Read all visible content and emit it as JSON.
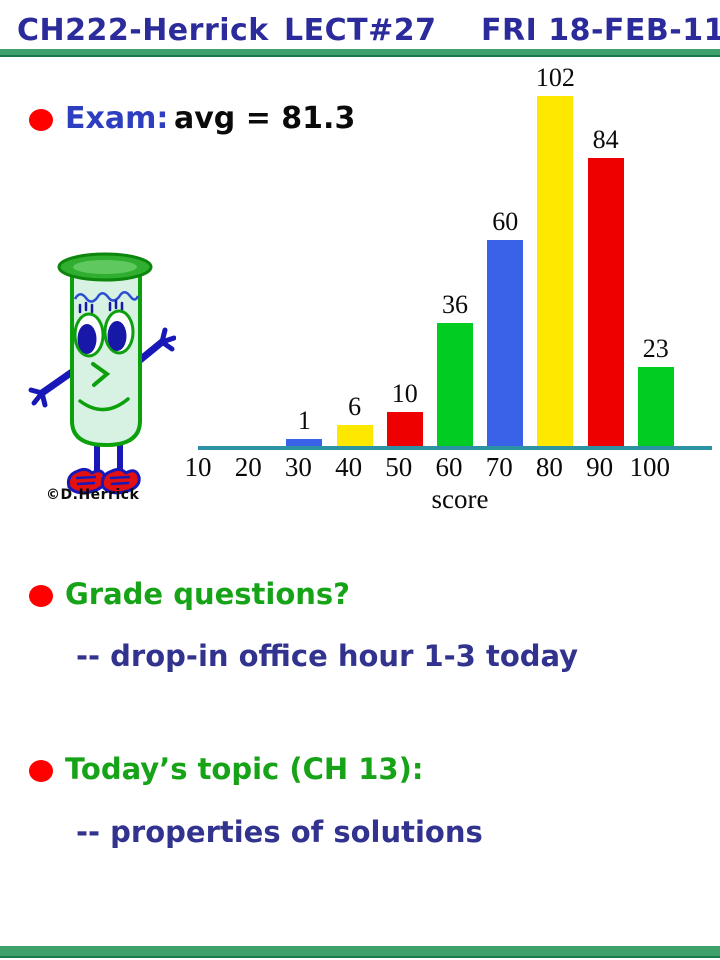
{
  "header": {
    "course": "CH222-Herrick",
    "lecture": "LECT#27",
    "date": "FRI 18-FEB-11"
  },
  "exam": {
    "label": "Exam:",
    "avg_text": "avg = 81.3"
  },
  "chart_data": {
    "type": "bar",
    "categories": [
      10,
      20,
      30,
      40,
      50,
      60,
      70,
      80,
      90,
      100
    ],
    "values": [
      0,
      0,
      1,
      6,
      10,
      36,
      60,
      102,
      84,
      23
    ],
    "bar_colors": [
      null,
      null,
      "#3A62E8",
      "#FFE800",
      "#EE0000",
      "#00CC22",
      "#3A62E8",
      "#FFE800",
      "#EE0000",
      "#00CC22"
    ],
    "xlabel": "score",
    "ylabel": "",
    "title": "",
    "ylim": [
      0,
      110
    ],
    "grid": false,
    "legend": false,
    "axis_color": "#2B93A3",
    "value_labels_shown": true
  },
  "mascot": {
    "credit": "©D.Herrick"
  },
  "bullets": [
    {
      "label": "Grade questions?",
      "sub": "-- drop-in office hour 1-3 today"
    },
    {
      "label": "Today’s topic (CH 13):",
      "sub": "-- properties of solutions"
    }
  ],
  "palette": {
    "header_blue": "#2B2B9B",
    "rule_green": "#3EA06A",
    "bullet_red": "#FF0000",
    "exam_blue": "#2E3EC0",
    "green_text": "#17A317",
    "navy_text": "#32328F",
    "axis_teal": "#2B93A3"
  }
}
